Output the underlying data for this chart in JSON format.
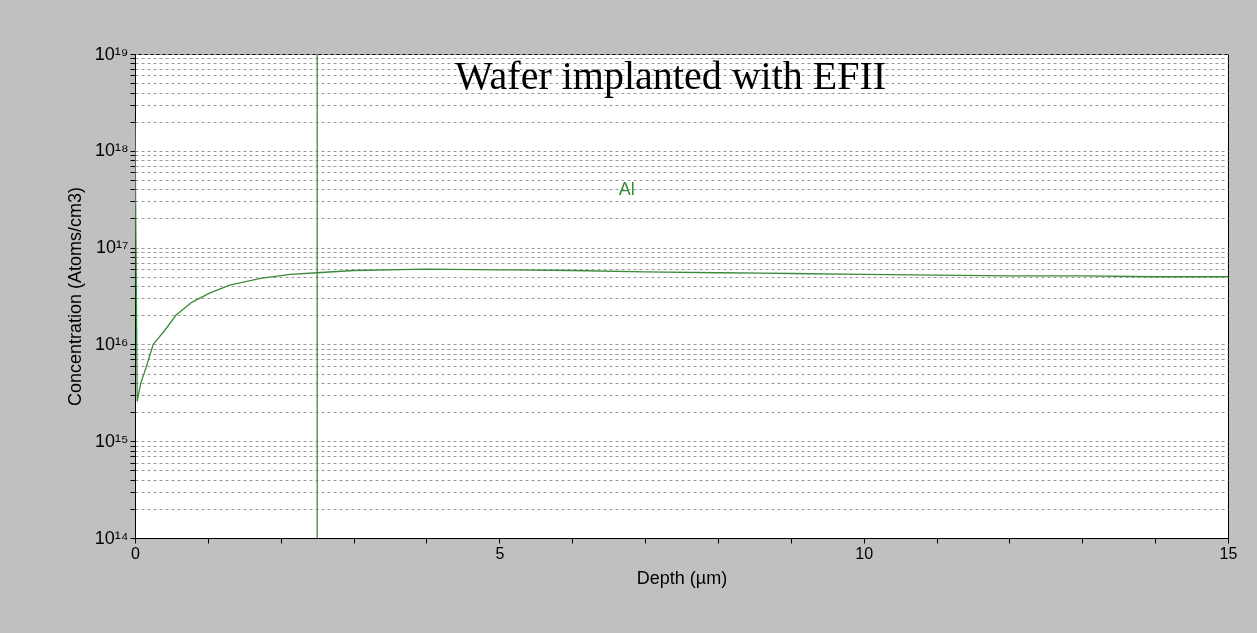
{
  "chart_data": {
    "type": "line",
    "title": "Wafer implanted with EFII",
    "xlabel": "Depth (µm)",
    "ylabel": "Concentration (Atoms/cm3)",
    "log": "y",
    "grid": "y",
    "marker": "none",
    "line_style": "solid",
    "x": [
      0,
      0.03,
      0.08,
      0.15,
      0.25,
      0.41,
      0.56,
      0.77,
      1.03,
      1.3,
      1.72,
      2.13,
      2.5,
      3,
      4,
      5,
      6,
      7,
      8,
      9,
      10,
      11,
      12,
      13,
      14,
      15
    ],
    "series": [
      {
        "name": "Al",
        "color": "#3a8a3a",
        "values": [
          2e+18,
          2600000000000000.0,
          4000000000000000.0,
          5700000000000000.0,
          1e+16,
          1.4e+16,
          2e+16,
          2.7e+16,
          3.4e+16,
          4.1e+16,
          4.8e+16,
          5.3e+16,
          5.5e+16,
          5.8e+16,
          6e+16,
          5.9e+16,
          5.8e+16,
          5.6e+16,
          5.5e+16,
          5.4e+16,
          5.3e+16,
          5.2e+16,
          5.1e+16,
          5.1e+16,
          5e+16,
          5e+16
        ]
      }
    ],
    "xlim": [
      0,
      15
    ],
    "xticks": [
      0,
      {
        "value": 1,
        "label": null
      },
      {
        "value": 2,
        "label": null
      },
      {
        "value": 3,
        "label": null
      },
      {
        "value": 4,
        "label": null
      },
      5,
      {
        "value": 6,
        "label": null
      },
      {
        "value": 7,
        "label": null
      },
      {
        "value": 8,
        "label": null
      },
      {
        "value": 9,
        "label": null
      },
      10,
      {
        "value": 11,
        "label": null
      },
      {
        "value": 12,
        "label": null
      },
      {
        "value": 13,
        "label": null
      },
      {
        "value": 14,
        "label": null
      },
      15
    ],
    "ylim": [
      100000000000000.0,
      1e+19
    ],
    "yticks": [
      {
        "value": 100000000000000.0,
        "label": "10¹⁴"
      },
      {
        "value": 200000000000000.0,
        "label": null
      },
      {
        "value": 300000000000000.0,
        "label": null
      },
      {
        "value": 400000000000000.0,
        "label": null
      },
      {
        "value": 500000000000000.0,
        "label": null
      },
      {
        "value": 600000000000000.0,
        "label": null
      },
      {
        "value": 700000000000000.0,
        "label": null
      },
      {
        "value": 800000000000000.0,
        "label": null
      },
      {
        "value": 900000000000000.0,
        "label": null
      },
      {
        "value": 1000000000000000.0,
        "label": "10¹⁵"
      },
      {
        "value": 2000000000000000.0,
        "label": null
      },
      {
        "value": 3000000000000000.0,
        "label": null
      },
      {
        "value": 4000000000000000.0,
        "label": null
      },
      {
        "value": 5000000000000000.0,
        "label": null
      },
      {
        "value": 6000000000000000.0,
        "label": null
      },
      {
        "value": 7000000000000000.0,
        "label": null
      },
      {
        "value": 8000000000000000.0,
        "label": null
      },
      {
        "value": 9000000000000000.0,
        "label": null
      },
      {
        "value": 1e+16,
        "label": "10¹⁶"
      },
      {
        "value": 2e+16,
        "label": null
      },
      {
        "value": 3e+16,
        "label": null
      },
      {
        "value": 4e+16,
        "label": null
      },
      {
        "value": 5e+16,
        "label": null
      },
      {
        "value": 6e+16,
        "label": null
      },
      {
        "value": 7e+16,
        "label": null
      },
      {
        "value": 8e+16,
        "label": null
      },
      {
        "value": 9e+16,
        "label": null
      },
      {
        "value": 1e+17,
        "label": "10¹⁷"
      },
      {
        "value": 2e+17,
        "label": null
      },
      {
        "value": 3e+17,
        "label": null
      },
      {
        "value": 4e+17,
        "label": null
      },
      {
        "value": 5e+17,
        "label": null
      },
      {
        "value": 6e+17,
        "label": null
      },
      {
        "value": 7e+17,
        "label": null
      },
      {
        "value": 8e+17,
        "label": null
      },
      {
        "value": 9e+17,
        "label": null
      },
      {
        "value": 1e+18,
        "label": "10¹⁸"
      },
      {
        "value": 2e+18,
        "label": null
      },
      {
        "value": 3e+18,
        "label": null
      },
      {
        "value": 4e+18,
        "label": null
      },
      {
        "value": 5e+18,
        "label": null
      },
      {
        "value": 6e+18,
        "label": null
      },
      {
        "value": 7e+18,
        "label": null
      },
      {
        "value": 8e+18,
        "label": null
      },
      {
        "value": 9e+18,
        "label": null
      },
      {
        "value": 1e+19,
        "label": "10¹⁹"
      }
    ],
    "ref_lines": [
      {
        "axis": "x",
        "value": 2.5,
        "color": "#3a8a3a"
      }
    ]
  }
}
